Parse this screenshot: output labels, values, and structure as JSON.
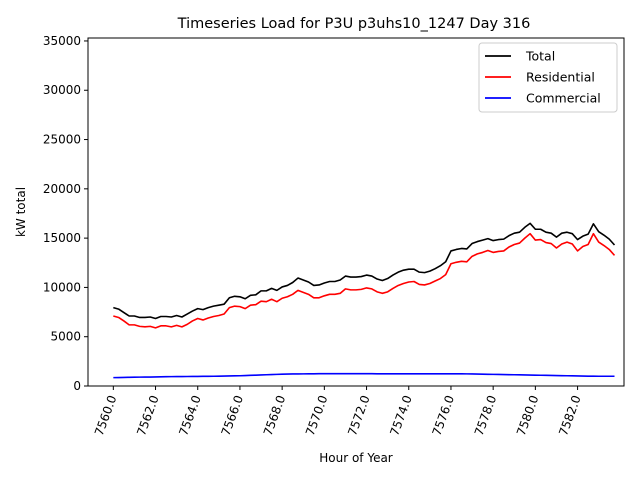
{
  "chart_data": {
    "type": "line",
    "title": "Timeseries Load for P3U p3uhs10_1247  Day 316",
    "xlabel": "Hour of Year",
    "ylabel": "kW total",
    "xlim": [
      7558.8,
      7584.2
    ],
    "ylim": [
      0,
      35300
    ],
    "xticks": [
      7560,
      7562,
      7564,
      7566,
      7568,
      7570,
      7572,
      7574,
      7576,
      7578,
      7580,
      7582
    ],
    "xtick_labels": [
      "7560.0",
      "7562.0",
      "7564.0",
      "7566.0",
      "7568.0",
      "7570.0",
      "7572.0",
      "7574.0",
      "7576.0",
      "7578.0",
      "7580.0",
      "7582.0"
    ],
    "yticks": [
      0,
      5000,
      10000,
      15000,
      20000,
      25000,
      30000,
      35000
    ],
    "ytick_labels": [
      "0",
      "5000",
      "10000",
      "15000",
      "20000",
      "25000",
      "30000",
      "35000"
    ],
    "legend_position": "top-right",
    "x": [
      7560.0,
      7560.25,
      7560.5,
      7560.75,
      7561.0,
      7561.25,
      7561.5,
      7561.75,
      7562.0,
      7562.25,
      7562.5,
      7562.75,
      7563.0,
      7563.25,
      7563.5,
      7563.75,
      7564.0,
      7564.25,
      7564.5,
      7564.75,
      7565.0,
      7565.25,
      7565.5,
      7565.75,
      7566.0,
      7566.25,
      7566.5,
      7566.75,
      7567.0,
      7567.25,
      7567.5,
      7567.75,
      7568.0,
      7568.25,
      7568.5,
      7568.75,
      7569.0,
      7569.25,
      7569.5,
      7569.75,
      7570.0,
      7570.25,
      7570.5,
      7570.75,
      7571.0,
      7571.25,
      7571.5,
      7571.75,
      7572.0,
      7572.25,
      7572.5,
      7572.75,
      7573.0,
      7573.25,
      7573.5,
      7573.75,
      7574.0,
      7574.25,
      7574.5,
      7574.75,
      7575.0,
      7575.25,
      7575.5,
      7575.75,
      7576.0,
      7576.25,
      7576.5,
      7576.75,
      7577.0,
      7577.25,
      7577.5,
      7577.75,
      7578.0,
      7578.25,
      7578.5,
      7578.75,
      7579.0,
      7579.25,
      7579.5,
      7579.75,
      7580.0,
      7580.25,
      7580.5,
      7580.75,
      7581.0,
      7581.25,
      7581.5,
      7581.75,
      7582.0,
      7582.25,
      7582.5,
      7582.75,
      7583.0,
      7583.25,
      7583.5,
      7583.75
    ],
    "series": [
      {
        "name": "Total",
        "color": "#000000",
        "values": [
          7950,
          7800,
          7450,
          7100,
          7100,
          6950,
          6950,
          7000,
          6850,
          7050,
          7050,
          7000,
          7150,
          7000,
          7300,
          7600,
          7850,
          7750,
          7950,
          8100,
          8200,
          8300,
          8950,
          9100,
          9050,
          8850,
          9200,
          9250,
          9650,
          9650,
          9900,
          9700,
          10050,
          10200,
          10500,
          10950,
          10750,
          10550,
          10200,
          10250,
          10450,
          10600,
          10600,
          10750,
          11150,
          11050,
          11050,
          11100,
          11250,
          11150,
          10850,
          10700,
          10900,
          11250,
          11550,
          11750,
          11850,
          11850,
          11550,
          11500,
          11650,
          11900,
          12200,
          12600,
          13700,
          13850,
          13950,
          13900,
          14450,
          14650,
          14800,
          14950,
          14750,
          14850,
          14900,
          15250,
          15500,
          15600,
          16100,
          16500,
          15900,
          15900,
          15600,
          15500,
          15100,
          15500,
          15600,
          15450,
          14850,
          15200,
          15400,
          16450,
          15650,
          15300,
          14900,
          14300
        ]
      },
      {
        "name": "Residential",
        "color": "#ff0000",
        "values": [
          7100,
          6950,
          6600,
          6200,
          6200,
          6050,
          6000,
          6050,
          5900,
          6100,
          6100,
          6000,
          6150,
          6000,
          6250,
          6600,
          6850,
          6700,
          6900,
          7050,
          7150,
          7300,
          7950,
          8100,
          8050,
          7850,
          8200,
          8250,
          8600,
          8550,
          8800,
          8550,
          8900,
          9050,
          9300,
          9700,
          9500,
          9300,
          8950,
          8950,
          9150,
          9300,
          9300,
          9400,
          9850,
          9750,
          9750,
          9800,
          9950,
          9850,
          9550,
          9400,
          9550,
          9900,
          10200,
          10400,
          10550,
          10600,
          10300,
          10250,
          10400,
          10650,
          10900,
          11300,
          12400,
          12550,
          12650,
          12600,
          13150,
          13400,
          13550,
          13750,
          13550,
          13650,
          13700,
          14100,
          14350,
          14500,
          15000,
          15450,
          14800,
          14850,
          14550,
          14450,
          14000,
          14400,
          14600,
          14400,
          13700,
          14150,
          14350,
          15450,
          14600,
          14250,
          13850,
          13250
        ]
      },
      {
        "name": "Commercial",
        "color": "#0000ff",
        "values": [
          850,
          860,
          870,
          880,
          890,
          900,
          905,
          910,
          920,
          930,
          940,
          950,
          955,
          960,
          965,
          970,
          975,
          980,
          985,
          990,
          1000,
          1010,
          1020,
          1030,
          1040,
          1060,
          1080,
          1100,
          1120,
          1140,
          1160,
          1180,
          1200,
          1210,
          1220,
          1225,
          1230,
          1235,
          1240,
          1245,
          1250,
          1250,
          1250,
          1250,
          1250,
          1250,
          1250,
          1250,
          1250,
          1245,
          1240,
          1240,
          1240,
          1240,
          1240,
          1240,
          1240,
          1240,
          1240,
          1240,
          1240,
          1240,
          1240,
          1240,
          1240,
          1240,
          1240,
          1230,
          1220,
          1210,
          1200,
          1190,
          1180,
          1170,
          1160,
          1150,
          1140,
          1130,
          1120,
          1110,
          1100,
          1090,
          1080,
          1070,
          1060,
          1050,
          1040,
          1030,
          1020,
          1010,
          1000,
          995,
          990,
          990,
          990,
          990
        ]
      }
    ]
  }
}
